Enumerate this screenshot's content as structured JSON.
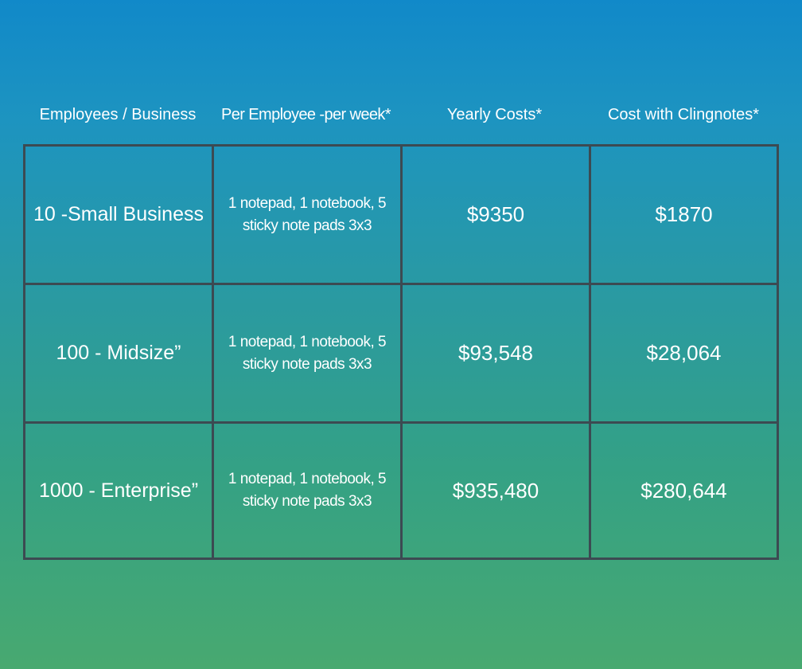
{
  "chart_data": {
    "type": "table",
    "columns": [
      "Employees / Business",
      "Per Employee -per week*",
      "Yearly Costs*",
      "Cost with Clingnotes*"
    ],
    "rows": [
      {
        "business": "10 -Small Business",
        "per_employee": "1 notepad, 1 notebook, 5 sticky note pads 3x3",
        "yearly_costs": "$9350",
        "cost_with_clingnotes": "$1870"
      },
      {
        "business": "100 - Midsize”",
        "per_employee": "1 notepad, 1 notebook, 5 sticky note pads 3x3",
        "yearly_costs": "$93,548",
        "cost_with_clingnotes": "$28,064"
      },
      {
        "business": "1000 -  Enterprise”",
        "per_employee": "1 notepad, 1 notebook, 5 sticky note pads 3x3",
        "yearly_costs": "$935,480",
        "cost_with_clingnotes": "$280,644"
      }
    ],
    "colors": {
      "background_top": "#1189c9",
      "background_bottom": "#48a970",
      "grid_lines": "#3c4a52",
      "text": "#ffffff"
    }
  }
}
